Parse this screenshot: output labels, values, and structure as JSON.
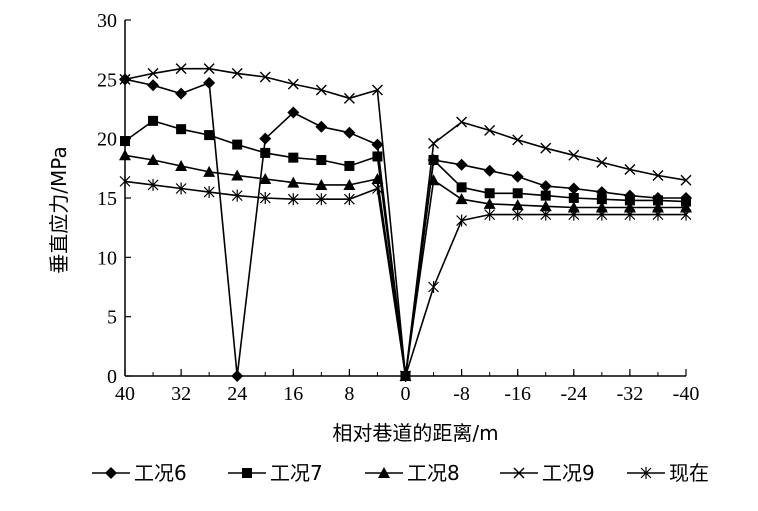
{
  "chart_data": {
    "type": "line",
    "title": "",
    "xlabel": "相对巷道的距离/m",
    "ylabel": "垂直应力/MPa",
    "ylim": [
      0,
      30
    ],
    "yticks": [
      "0",
      "5",
      "10",
      "15",
      "20",
      "25",
      "30"
    ],
    "xtick_labels": [
      "40",
      "32",
      "24",
      "16",
      "8",
      "0",
      "-8",
      "-16",
      "-24",
      "-32",
      "-40"
    ],
    "x": [
      "40",
      "36",
      "32",
      "28",
      "24",
      "20",
      "16",
      "12",
      "8",
      "4",
      "0",
      "-4",
      "-8",
      "-12",
      "-16",
      "-20",
      "-24",
      "-28",
      "-32",
      "-36",
      "-40"
    ],
    "grid": false,
    "legend_position": "bottom",
    "series": [
      {
        "name": "工况6",
        "marker": "diamond",
        "values": [
          25.0,
          24.5,
          23.8,
          24.7,
          0.0,
          20.0,
          22.2,
          21.0,
          20.5,
          19.5,
          0.0,
          18.2,
          17.8,
          17.3,
          16.8,
          16.0,
          15.8,
          15.5,
          15.2,
          15.0,
          15.0
        ]
      },
      {
        "name": "工况7",
        "marker": "square",
        "values": [
          19.8,
          21.5,
          20.8,
          20.3,
          19.5,
          18.8,
          18.4,
          18.2,
          17.7,
          18.5,
          0.0,
          18.2,
          15.9,
          15.4,
          15.4,
          15.2,
          15.0,
          14.9,
          14.8,
          14.8,
          14.7
        ]
      },
      {
        "name": "工况8",
        "marker": "triangle",
        "values": [
          18.6,
          18.2,
          17.7,
          17.2,
          16.9,
          16.6,
          16.3,
          16.1,
          16.1,
          16.6,
          0.0,
          16.5,
          14.9,
          14.5,
          14.4,
          14.3,
          14.2,
          14.2,
          14.2,
          14.2,
          14.2
        ]
      },
      {
        "name": "工况9",
        "marker": "x",
        "values": [
          25.0,
          25.5,
          25.9,
          25.9,
          25.5,
          25.2,
          24.6,
          24.1,
          23.4,
          24.1,
          0.0,
          19.6,
          21.4,
          20.7,
          19.9,
          19.2,
          18.6,
          18.0,
          17.4,
          16.9,
          16.5
        ]
      },
      {
        "name": "现在",
        "marker": "asterisk",
        "values": [
          16.4,
          16.1,
          15.8,
          15.5,
          15.2,
          15.0,
          14.9,
          14.9,
          14.9,
          15.8,
          0.0,
          7.5,
          13.1,
          13.6,
          13.6,
          13.6,
          13.6,
          13.6,
          13.6,
          13.6,
          13.6
        ]
      }
    ]
  }
}
